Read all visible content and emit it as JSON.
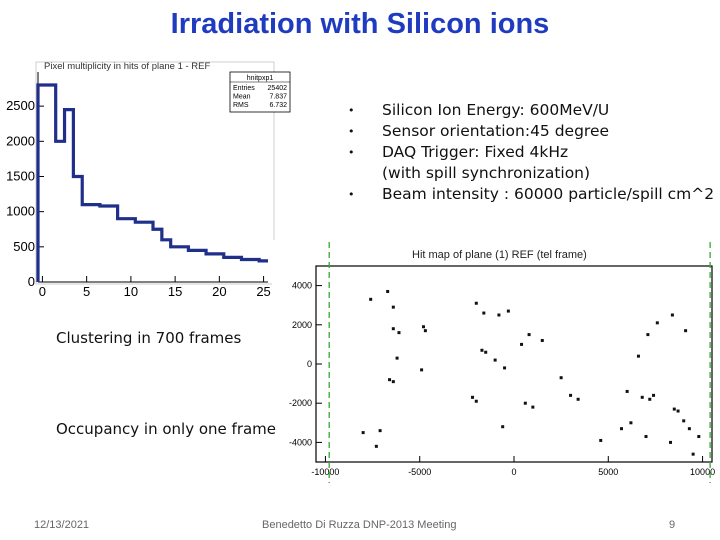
{
  "slide": {
    "title": "Irradiation with Silicon ions",
    "bullets": [
      {
        "text": "Silicon  Ion Energy: 600MeV/U"
      },
      {
        "text": "Sensor orientation:45 degree"
      },
      {
        "text": "DAQ Trigger:  Fixed 4kHz"
      },
      {
        "text": "(with spill synchronization)"
      },
      {
        "text": "Beam intensity : 60000 particle/spill  cm^2"
      }
    ],
    "caption_clustering": "Clustering in 700 frames",
    "caption_occupancy": "Occupancy in only one frame",
    "footer": {
      "date": "12/13/2021",
      "center": "Benedetto Di Ruzza DNP-2013 Meeting",
      "page": "9"
    }
  },
  "chart_data": [
    {
      "type": "bar",
      "title": "Pixel multiplicity in hits of plane 1 - REF",
      "stats_box": {
        "name": "hnitpxp1",
        "rows": [
          [
            "Entries",
            "25402"
          ],
          [
            "Mean",
            "7.837"
          ],
          [
            "RMS",
            "6.732"
          ]
        ]
      },
      "x_ticks": [
        "0",
        "5",
        "10",
        "15",
        "20",
        "25"
      ],
      "y_ticks": [
        "0",
        "500",
        "1000",
        "1500",
        "2000",
        "2500"
      ],
      "xlim": [
        -0.5,
        25.5
      ],
      "ylim": [
        0,
        2900
      ],
      "x": [
        0,
        1,
        2,
        3,
        4,
        5,
        6,
        7,
        8,
        9,
        10,
        11,
        12,
        13,
        14,
        15,
        16,
        17,
        18,
        19,
        20,
        21,
        22,
        23,
        24,
        25
      ],
      "values": [
        2800,
        2800,
        2000,
        2450,
        1500,
        1100,
        1100,
        1080,
        1080,
        900,
        900,
        850,
        850,
        750,
        600,
        500,
        500,
        450,
        450,
        400,
        400,
        350,
        350,
        320,
        320,
        300
      ],
      "line_color": "#1f2f8a"
    },
    {
      "type": "scatter",
      "title": "Hit map of plane (1) REF (tel frame)",
      "x_ticks": [
        "-10000",
        "-5000",
        "0",
        "5000",
        "10000"
      ],
      "y_ticks": [
        "4000",
        "2000",
        "0",
        "-2000",
        "-4000"
      ],
      "xlim": [
        -10500,
        10500
      ],
      "ylim": [
        -5000,
        5000
      ],
      "boundary_x": [
        -9800,
        10400
      ],
      "points": [
        [
          -7600,
          3300
        ],
        [
          -6700,
          3700
        ],
        [
          -6400,
          2900
        ],
        [
          -6400,
          1800
        ],
        [
          -6100,
          1600
        ],
        [
          -4800,
          1900
        ],
        [
          -4700,
          1700
        ],
        [
          -2000,
          3100
        ],
        [
          -1600,
          2600
        ],
        [
          -800,
          2500
        ],
        [
          -300,
          2700
        ],
        [
          -6600,
          -800
        ],
        [
          -6400,
          -900
        ],
        [
          -4900,
          -300
        ],
        [
          -6200,
          300
        ],
        [
          -1700,
          700
        ],
        [
          -1500,
          600
        ],
        [
          -1000,
          200
        ],
        [
          -500,
          -200
        ],
        [
          400,
          1000
        ],
        [
          800,
          1500
        ],
        [
          1500,
          1200
        ],
        [
          600,
          -2000
        ],
        [
          1000,
          -2200
        ],
        [
          -2200,
          -1700
        ],
        [
          -2000,
          -1900
        ],
        [
          -8000,
          -3500
        ],
        [
          -7300,
          -4200
        ],
        [
          -7100,
          -3400
        ],
        [
          -600,
          -3200
        ],
        [
          2500,
          -700
        ],
        [
          3000,
          -1600
        ],
        [
          3400,
          -1800
        ],
        [
          6000,
          -1400
        ],
        [
          6800,
          -1700
        ],
        [
          7400,
          -1600
        ],
        [
          7200,
          -1800
        ],
        [
          8500,
          -2300
        ],
        [
          8700,
          -2400
        ],
        [
          9000,
          -2900
        ],
        [
          9300,
          -3300
        ],
        [
          9800,
          -3700
        ],
        [
          6600,
          400
        ],
        [
          7100,
          1500
        ],
        [
          7600,
          2100
        ],
        [
          8400,
          2500
        ],
        [
          9100,
          1700
        ],
        [
          5700,
          -3300
        ],
        [
          6200,
          -3000
        ],
        [
          4600,
          -3900
        ],
        [
          7000,
          -3700
        ],
        [
          8300,
          -4000
        ],
        [
          9500,
          -4600
        ]
      ]
    }
  ]
}
